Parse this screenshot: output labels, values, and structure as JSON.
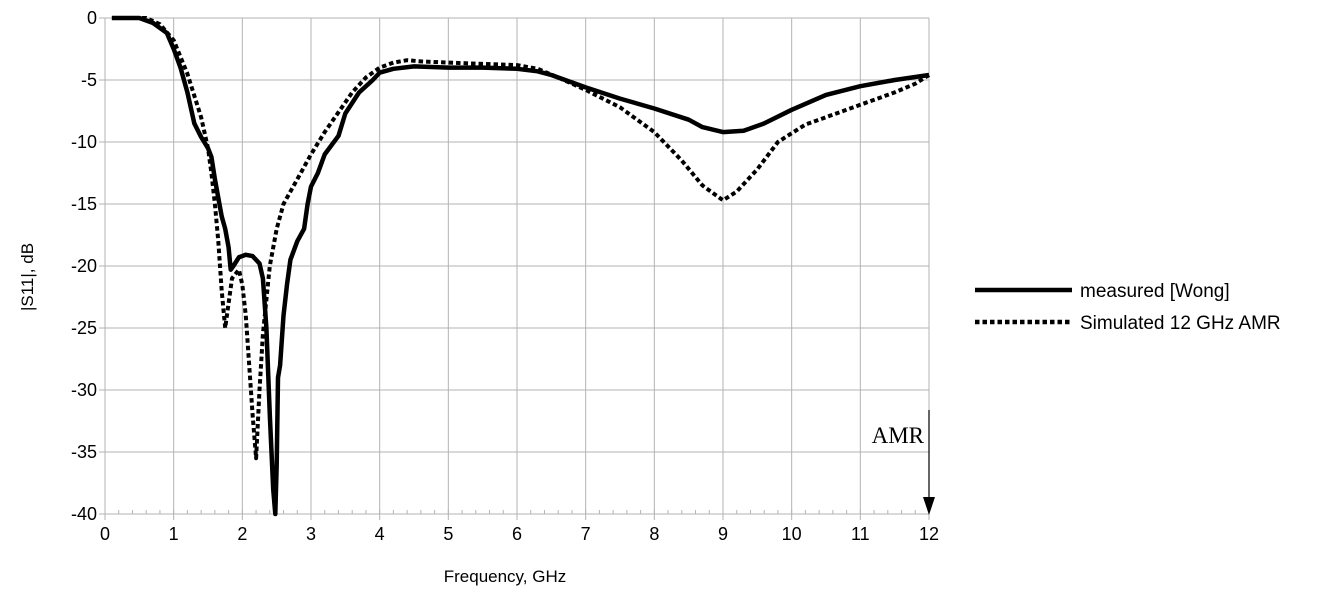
{
  "chart_data": {
    "type": "line",
    "xlabel": "Frequency, GHz",
    "ylabel": "|S11|, dB",
    "xlim": [
      0,
      12
    ],
    "ylim": [
      -40,
      0
    ],
    "x_ticks": [
      0,
      1,
      2,
      3,
      4,
      5,
      6,
      7,
      8,
      9,
      10,
      11,
      12
    ],
    "y_ticks": [
      0,
      -5,
      -10,
      -15,
      -20,
      -25,
      -30,
      -35,
      -40
    ],
    "grid": true,
    "legend_position": "right",
    "annotation": {
      "text": "AMR",
      "x": 12
    },
    "series": [
      {
        "name": "measured [Wong]",
        "style": "solid",
        "color": "#000000",
        "points": [
          [
            0.1,
            0
          ],
          [
            0.5,
            0
          ],
          [
            0.7,
            -0.4
          ],
          [
            0.9,
            -1.2
          ],
          [
            1.0,
            -2.5
          ],
          [
            1.1,
            -4.0
          ],
          [
            1.2,
            -6.0
          ],
          [
            1.3,
            -8.5
          ],
          [
            1.4,
            -9.6
          ],
          [
            1.5,
            -10.5
          ],
          [
            1.55,
            -11.2
          ],
          [
            1.6,
            -13.0
          ],
          [
            1.65,
            -14.5
          ],
          [
            1.7,
            -16.0
          ],
          [
            1.75,
            -17.0
          ],
          [
            1.8,
            -18.5
          ],
          [
            1.83,
            -20.3
          ],
          [
            1.87,
            -20.0
          ],
          [
            1.95,
            -19.3
          ],
          [
            2.05,
            -19.1
          ],
          [
            2.15,
            -19.2
          ],
          [
            2.25,
            -19.8
          ],
          [
            2.3,
            -21.0
          ],
          [
            2.35,
            -25.0
          ],
          [
            2.4,
            -32.0
          ],
          [
            2.45,
            -38.0
          ],
          [
            2.48,
            -40.0
          ],
          [
            2.5,
            -36.0
          ],
          [
            2.52,
            -29.0
          ],
          [
            2.55,
            -28.0
          ],
          [
            2.6,
            -24.0
          ],
          [
            2.65,
            -21.5
          ],
          [
            2.7,
            -19.5
          ],
          [
            2.8,
            -18.0
          ],
          [
            2.9,
            -17.0
          ],
          [
            2.95,
            -15.0
          ],
          [
            3.0,
            -13.6
          ],
          [
            3.1,
            -12.5
          ],
          [
            3.2,
            -11.0
          ],
          [
            3.4,
            -9.5
          ],
          [
            3.5,
            -7.7
          ],
          [
            3.7,
            -6.0
          ],
          [
            3.9,
            -5.0
          ],
          [
            4.0,
            -4.4
          ],
          [
            4.2,
            -4.1
          ],
          [
            4.5,
            -3.9
          ],
          [
            5.0,
            -4.0
          ],
          [
            5.5,
            -4.0
          ],
          [
            6.0,
            -4.1
          ],
          [
            6.3,
            -4.3
          ],
          [
            6.5,
            -4.6
          ],
          [
            7.0,
            -5.6
          ],
          [
            7.5,
            -6.5
          ],
          [
            8.0,
            -7.3
          ],
          [
            8.5,
            -8.2
          ],
          [
            8.7,
            -8.8
          ],
          [
            9.0,
            -9.2
          ],
          [
            9.3,
            -9.1
          ],
          [
            9.6,
            -8.5
          ],
          [
            10.0,
            -7.4
          ],
          [
            10.5,
            -6.2
          ],
          [
            11.0,
            -5.5
          ],
          [
            11.5,
            -5.0
          ],
          [
            12.0,
            -4.6
          ]
        ]
      },
      {
        "name": "Simulated 12 GHz AMR",
        "style": "dotted",
        "color": "#000000",
        "points": [
          [
            0.1,
            0
          ],
          [
            0.6,
            0
          ],
          [
            0.8,
            -0.5
          ],
          [
            1.0,
            -1.8
          ],
          [
            1.2,
            -4.5
          ],
          [
            1.4,
            -8.0
          ],
          [
            1.5,
            -10.5
          ],
          [
            1.55,
            -12.5
          ],
          [
            1.6,
            -15.0
          ],
          [
            1.65,
            -18.0
          ],
          [
            1.7,
            -22.0
          ],
          [
            1.75,
            -25.0
          ],
          [
            1.8,
            -23.0
          ],
          [
            1.85,
            -21.0
          ],
          [
            1.95,
            -20.3
          ],
          [
            2.0,
            -21.5
          ],
          [
            2.05,
            -24.0
          ],
          [
            2.1,
            -28.0
          ],
          [
            2.15,
            -32.0
          ],
          [
            2.2,
            -35.5
          ],
          [
            2.25,
            -30.0
          ],
          [
            2.3,
            -25.5
          ],
          [
            2.4,
            -20.0
          ],
          [
            2.5,
            -17.0
          ],
          [
            2.6,
            -15.0
          ],
          [
            2.8,
            -13.0
          ],
          [
            3.0,
            -11.0
          ],
          [
            3.2,
            -9.2
          ],
          [
            3.4,
            -7.6
          ],
          [
            3.6,
            -6.0
          ],
          [
            3.8,
            -4.8
          ],
          [
            4.0,
            -4.0
          ],
          [
            4.2,
            -3.6
          ],
          [
            4.4,
            -3.4
          ],
          [
            4.6,
            -3.5
          ],
          [
            5.0,
            -3.6
          ],
          [
            5.5,
            -3.7
          ],
          [
            6.0,
            -3.8
          ],
          [
            6.3,
            -4.1
          ],
          [
            6.6,
            -4.8
          ],
          [
            7.0,
            -5.8
          ],
          [
            7.5,
            -7.2
          ],
          [
            8.0,
            -9.2
          ],
          [
            8.4,
            -11.5
          ],
          [
            8.7,
            -13.5
          ],
          [
            9.0,
            -14.7
          ],
          [
            9.2,
            -14.0
          ],
          [
            9.5,
            -12.2
          ],
          [
            9.8,
            -10.0
          ],
          [
            10.2,
            -8.6
          ],
          [
            10.5,
            -8.0
          ],
          [
            11.0,
            -7.0
          ],
          [
            11.5,
            -6.0
          ],
          [
            11.8,
            -5.3
          ],
          [
            12.0,
            -4.6
          ]
        ]
      }
    ]
  }
}
